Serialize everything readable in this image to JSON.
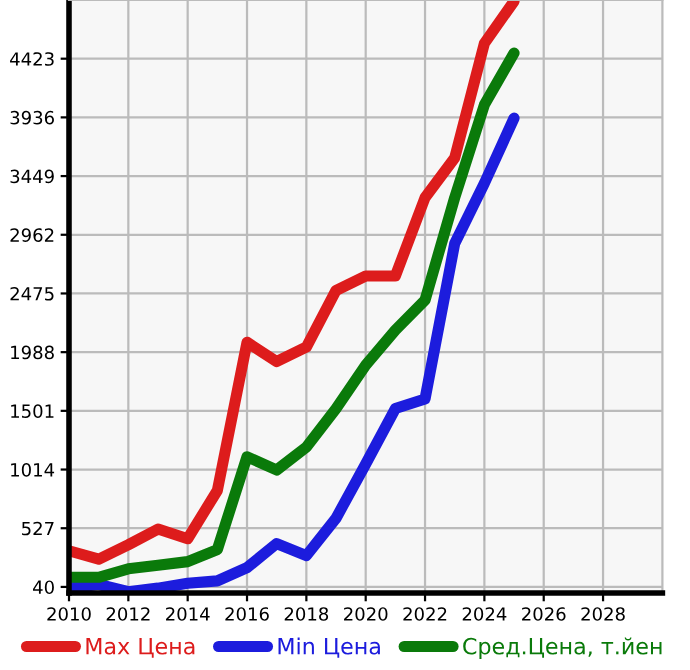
{
  "chart_data": {
    "type": "line",
    "x": [
      2010,
      2011,
      2012,
      2013,
      2014,
      2015,
      2016,
      2017,
      2018,
      2019,
      2020,
      2021,
      2022,
      2023,
      2024,
      2025
    ],
    "series": [
      {
        "name": "Max Цена",
        "color": "#dd1c1c",
        "values": [
          340,
          270,
          390,
          520,
          440,
          840,
          2070,
          1910,
          2030,
          2500,
          2620,
          2620,
          3270,
          3600,
          4550,
          4900
        ]
      },
      {
        "name": "Min Цена",
        "color": "#1c1cdd",
        "values": [
          30,
          60,
          0,
          30,
          70,
          90,
          200,
          400,
          300,
          610,
          1060,
          1520,
          1600,
          2890,
          3390,
          3930
        ]
      },
      {
        "name": "Сред.Цена, т.йен",
        "color": "#0a7a0a",
        "values": [
          120,
          120,
          190,
          220,
          250,
          350,
          1120,
          1010,
          1200,
          1520,
          1880,
          2170,
          2420,
          3270,
          4040,
          4470
        ]
      }
    ],
    "xlim": [
      2010,
      2030
    ],
    "xticks": [
      2010,
      2012,
      2014,
      2016,
      2018,
      2020,
      2022,
      2024,
      2026,
      2028
    ],
    "ylim": [
      -10,
      4910
    ],
    "yticks": [
      40,
      527,
      1014,
      1501,
      1988,
      2475,
      2962,
      3449,
      3936,
      4423
    ],
    "grid": true,
    "legend": "bottom",
    "marker": "none",
    "line_style": "solid"
  }
}
